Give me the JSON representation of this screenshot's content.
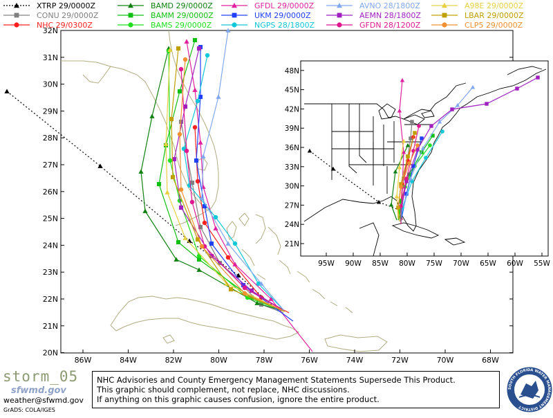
{
  "legend": [
    {
      "label": "XTRP",
      "time": "29/0000Z",
      "color": "#000000",
      "marker": "triangle",
      "dashed": true
    },
    {
      "label": "CONU",
      "time": "29/0000Z",
      "color": "#808080",
      "marker": "square"
    },
    {
      "label": "NHC",
      "time": "29/0300Z",
      "color": "#ff2020",
      "marker": "circle"
    },
    {
      "label": "BAMD",
      "time": "29/0000Z",
      "color": "#108010",
      "marker": "triangle"
    },
    {
      "label": "BAMM",
      "time": "29/0000Z",
      "color": "#10c010",
      "marker": "square"
    },
    {
      "label": "BAMS",
      "time": "29/0000Z",
      "color": "#20e020",
      "marker": "circle"
    },
    {
      "label": "GFDL",
      "time": "29/0000Z",
      "color": "#e020a0",
      "marker": "triangle"
    },
    {
      "label": "UKM",
      "time": "29/0000Z",
      "color": "#2040ff",
      "marker": "square"
    },
    {
      "label": "NGPS",
      "time": "28/1800Z",
      "color": "#10c8d8",
      "marker": "circle"
    },
    {
      "label": "AVNO",
      "time": "28/1800Z",
      "color": "#80a8f0",
      "marker": "triangle"
    },
    {
      "label": "AEMN",
      "time": "28/1800Z",
      "color": "#a020c0",
      "marker": "square"
    },
    {
      "label": "GFDN",
      "time": "28/1200Z",
      "color": "#e01890",
      "marker": "circle"
    },
    {
      "label": "A98E",
      "time": "29/0000Z",
      "color": "#e8d040",
      "marker": "triangle"
    },
    {
      "label": "LBAR",
      "time": "29/0000Z",
      "color": "#c0a000",
      "marker": "square"
    },
    {
      "label": "CLP5",
      "time": "29/0000Z",
      "color": "#f09030",
      "marker": "circle"
    }
  ],
  "main_map": {
    "lat_labels": [
      "20N",
      "21N",
      "22N",
      "23N",
      "24N",
      "25N",
      "26N",
      "27N",
      "28N",
      "29N",
      "30N",
      "31N",
      "32N"
    ],
    "lon_labels": [
      "86W",
      "84W",
      "82W",
      "80W",
      "78W",
      "76W",
      "74W",
      "72W",
      "70W",
      "68W"
    ]
  },
  "inset_map": {
    "lat_labels": [
      "21N",
      "24N",
      "27N",
      "30N",
      "33N",
      "36N",
      "39N",
      "42N",
      "45N",
      "48N"
    ],
    "lon_labels": [
      "95W",
      "90W",
      "85W",
      "80W",
      "75W",
      "70W",
      "65W",
      "60W",
      "55W"
    ]
  },
  "bottom": {
    "storm_id": "storm_05",
    "org_logo": "sfwmd.gov",
    "email": "weather@sfwmd.gov",
    "credit": "GrADS: COLA/IGES",
    "disclaimer": [
      "NHC Advisories and County Emergency Management Statements Supersede This Product.",
      "This graphic should complement, not replace, NHC discussions.",
      "If anything on this graphic causes confusion, ignore the entire product."
    ],
    "seal_text": "SOUTH FLORIDA WATER MANAGEMENT DISTRICT"
  }
}
